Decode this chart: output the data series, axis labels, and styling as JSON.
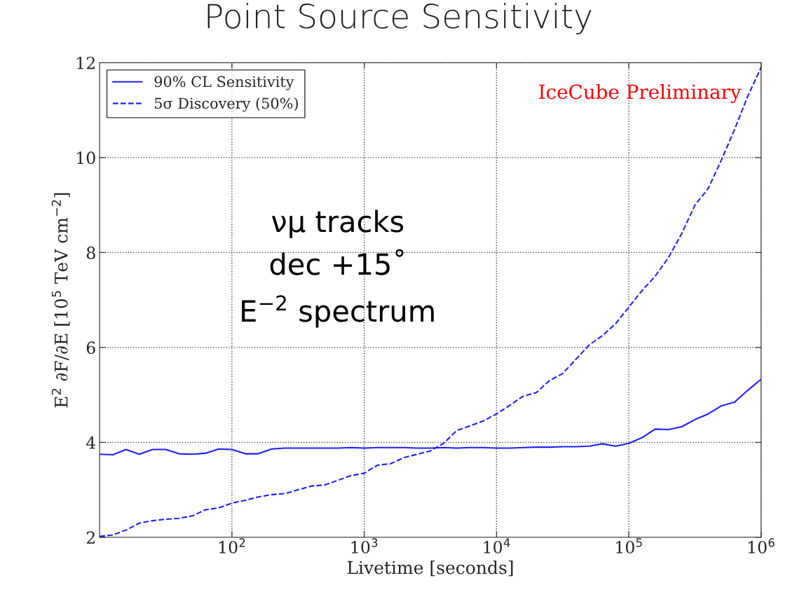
{
  "chart_data": {
    "type": "line",
    "title": "Point Source Sensitivity",
    "xlabel": "Livetime [seconds]",
    "ylabel": "E$^{2}$ ∂F/∂E [10$^{5}$ TeV cm$^{−2}$]",
    "x": [
      10,
      12.6,
      15.8,
      20,
      25.1,
      31.6,
      39.8,
      50.1,
      63.1,
      79.4,
      100,
      126,
      158,
      200,
      251,
      316,
      398,
      501,
      631,
      794,
      1000,
      1260,
      1580,
      2000,
      2510,
      3160,
      3980,
      5010,
      6310,
      7940,
      10000,
      12600,
      15800,
      20000,
      25100,
      31600,
      39800,
      50100,
      63100,
      79400,
      100000,
      126000,
      158000,
      200000,
      251000,
      316000,
      398000,
      501000,
      631000,
      794000,
      1000000
    ],
    "series": [
      {
        "name": "90% CL Sensitivity",
        "color": "#1f1fff",
        "line_style": "solid",
        "values": [
          3.75,
          3.74,
          3.85,
          3.75,
          3.85,
          3.85,
          3.76,
          3.75,
          3.77,
          3.86,
          3.85,
          3.76,
          3.76,
          3.86,
          3.88,
          3.88,
          3.88,
          3.88,
          3.88,
          3.89,
          3.88,
          3.89,
          3.89,
          3.89,
          3.88,
          3.88,
          3.89,
          3.88,
          3.89,
          3.89,
          3.88,
          3.88,
          3.89,
          3.9,
          3.9,
          3.91,
          3.91,
          3.92,
          3.97,
          3.92,
          3.98,
          4.1,
          4.28,
          4.27,
          4.33,
          4.48,
          4.6,
          4.77,
          4.85,
          5.1,
          5.33
        ]
      },
      {
        "name": "5σ Discovery (50%)",
        "color": "#1f1fff",
        "line_style": "dashed",
        "values": [
          2.02,
          2.05,
          2.15,
          2.3,
          2.35,
          2.38,
          2.4,
          2.45,
          2.58,
          2.62,
          2.72,
          2.78,
          2.85,
          2.9,
          2.92,
          3.0,
          3.08,
          3.1,
          3.2,
          3.3,
          3.35,
          3.52,
          3.55,
          3.68,
          3.75,
          3.82,
          3.98,
          4.25,
          4.35,
          4.45,
          4.6,
          4.78,
          4.97,
          5.05,
          5.3,
          5.45,
          5.75,
          6.05,
          6.25,
          6.5,
          6.85,
          7.2,
          7.5,
          7.9,
          8.4,
          9.0,
          9.35,
          9.95,
          10.6,
          11.3,
          11.9
        ]
      }
    ],
    "annotations": [
      "IceCube Preliminary",
      "νμ tracks",
      "dec +15˚",
      "E$^{−2}$ spectrum"
    ],
    "log": "x",
    "xlim": [
      10,
      1000000
    ],
    "xticks": [
      {
        "value": 100,
        "label": "10$^{2}$"
      },
      {
        "value": 1000,
        "label": "10$^{3}$"
      },
      {
        "value": 10000,
        "label": "10$^{4}$"
      },
      {
        "value": 100000,
        "label": "10$^{5}$"
      },
      {
        "value": 1000000,
        "label": "10$^{6}$"
      }
    ],
    "ylim": [
      2,
      12
    ],
    "yticks": [
      2,
      4,
      6,
      8,
      10,
      12
    ],
    "grid": true,
    "legend": "top left"
  }
}
